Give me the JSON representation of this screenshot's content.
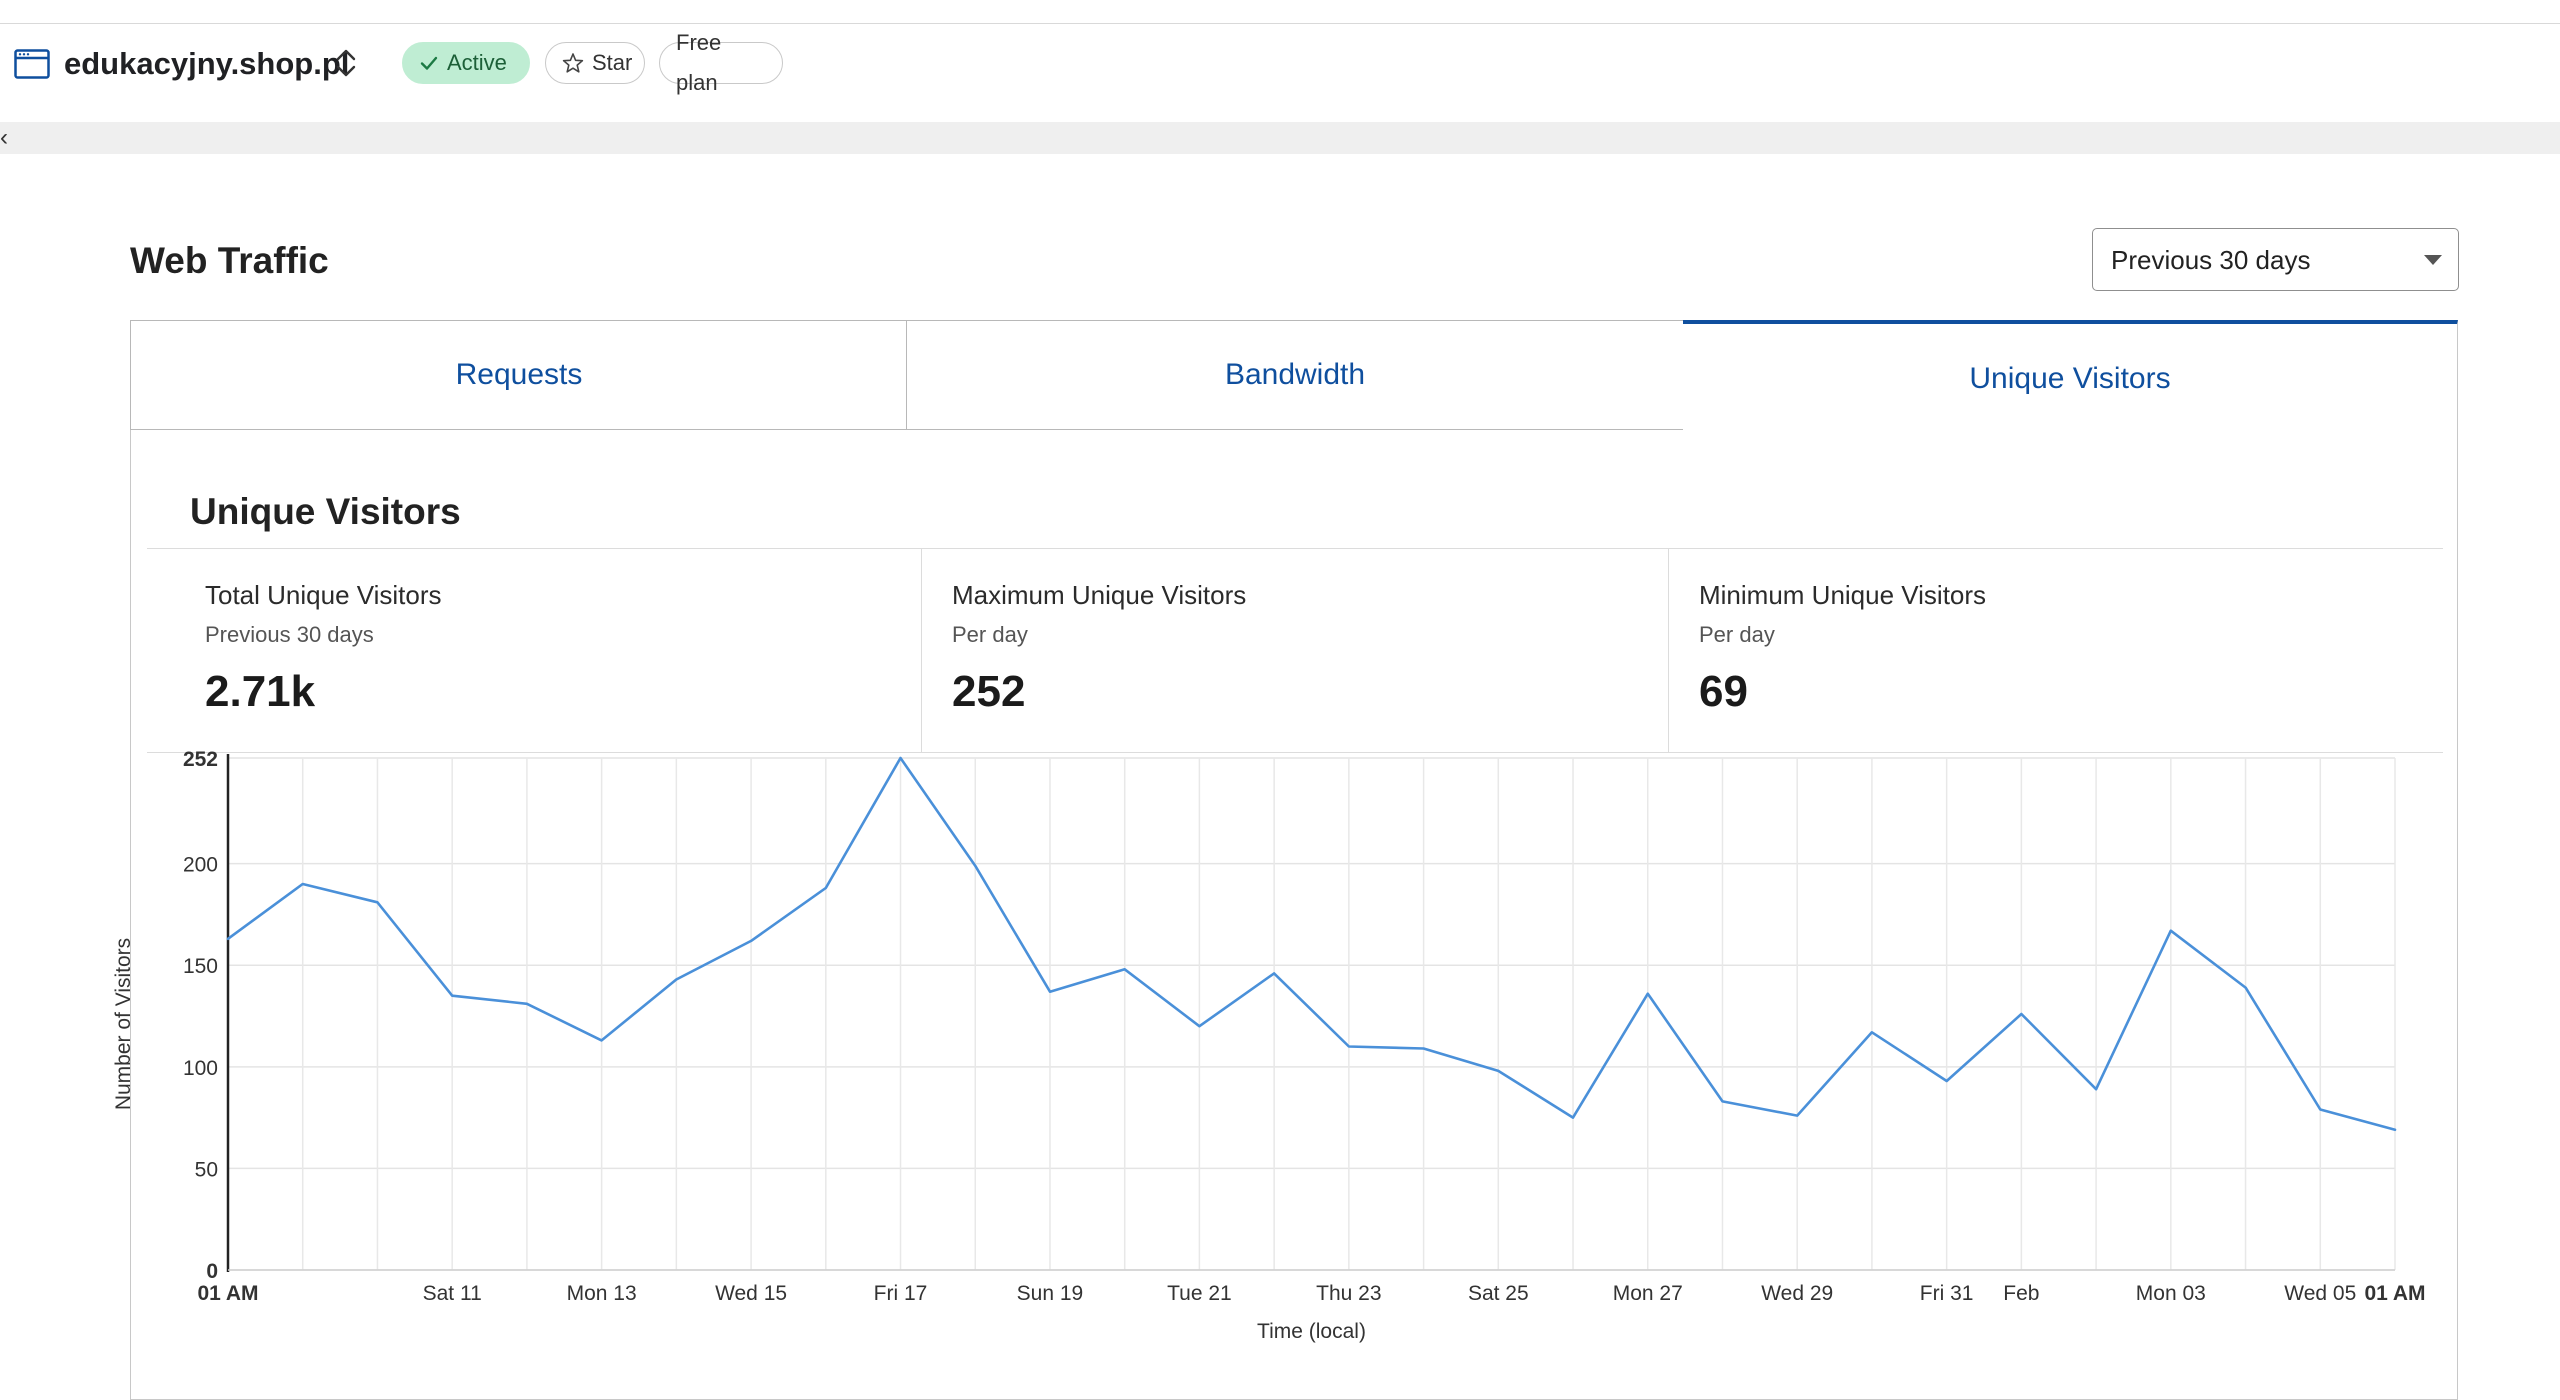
{
  "header": {
    "site_name": "edukacyjny.shop.pl",
    "status_label": "Active",
    "star_label": "Star",
    "plan_label": "Free plan",
    "status_color": "#bfedd3"
  },
  "icons": {
    "site": "browser-window-icon",
    "switcher": "chevron-up-down-icon",
    "status": "check-icon",
    "star": "star-outline-icon",
    "dropdown": "caret-down-icon"
  },
  "page": {
    "title": "Web Traffic",
    "range_select": {
      "value": "Previous 30 days"
    }
  },
  "tabs": [
    {
      "label": "Requests",
      "selected": false
    },
    {
      "label": "Bandwidth",
      "selected": false
    },
    {
      "label": "Unique Visitors",
      "selected": true
    }
  ],
  "section": {
    "title": "Unique Visitors",
    "stats": [
      {
        "label": "Total Unique Visitors",
        "sub": "Previous 30 days",
        "value": "2.71k"
      },
      {
        "label": "Maximum Unique Visitors",
        "sub": "Per day",
        "value": "252"
      },
      {
        "label": "Minimum Unique Visitors",
        "sub": "Per day",
        "value": "69"
      }
    ]
  },
  "accent_color": "#0f4f9e",
  "line_color": "#4a90d9",
  "chart_data": {
    "type": "line",
    "title": "",
    "xlabel": "Time (local)",
    "ylabel": "Number of Visitors",
    "ylim": [
      0,
      252
    ],
    "y_ticks": [
      0,
      50,
      100,
      150,
      200,
      252
    ],
    "grid": true,
    "legend": "none",
    "x_ticks": [
      {
        "i": 0,
        "label": "01 AM",
        "bold": true
      },
      {
        "i": 3,
        "label": "Sat 11",
        "bold": false
      },
      {
        "i": 5,
        "label": "Mon 13",
        "bold": false
      },
      {
        "i": 7,
        "label": "Wed 15",
        "bold": false
      },
      {
        "i": 9,
        "label": "Fri 17",
        "bold": false
      },
      {
        "i": 11,
        "label": "Sun 19",
        "bold": false
      },
      {
        "i": 13,
        "label": "Tue 21",
        "bold": false
      },
      {
        "i": 15,
        "label": "Thu 23",
        "bold": false
      },
      {
        "i": 17,
        "label": "Sat 25",
        "bold": false
      },
      {
        "i": 19,
        "label": "Mon 27",
        "bold": false
      },
      {
        "i": 21,
        "label": "Wed 29",
        "bold": false
      },
      {
        "i": 23,
        "label": "Fri 31",
        "bold": false
      },
      {
        "i": 24,
        "label": "Feb",
        "bold": false
      },
      {
        "i": 26,
        "label": "Mon 03",
        "bold": false
      },
      {
        "i": 28,
        "label": "Wed 05",
        "bold": false
      },
      {
        "i": 29,
        "label": "01 AM",
        "bold": true
      }
    ],
    "x": [
      "Wed 08",
      "Thu 09",
      "Fri 10",
      "Sat 11",
      "Sun 12",
      "Mon 13",
      "Tue 14",
      "Wed 15",
      "Thu 16",
      "Fri 17",
      "Sat 18",
      "Sun 19",
      "Mon 20",
      "Tue 21",
      "Wed 22",
      "Thu 23",
      "Fri 24",
      "Sat 25",
      "Sun 26",
      "Mon 27",
      "Tue 28",
      "Wed 29",
      "Thu 30",
      "Fri 31",
      "Sat 01",
      "Sun 02",
      "Mon 03",
      "Tue 04",
      "Wed 05",
      "Thu 06"
    ],
    "series": [
      {
        "values": [
          163,
          190,
          181,
          135,
          131,
          113,
          143,
          162,
          188,
          252,
          199,
          137,
          148,
          120,
          146,
          110,
          109,
          98,
          75,
          136,
          83,
          76,
          117,
          93,
          126,
          89,
          167,
          139,
          79,
          69
        ]
      }
    ]
  }
}
